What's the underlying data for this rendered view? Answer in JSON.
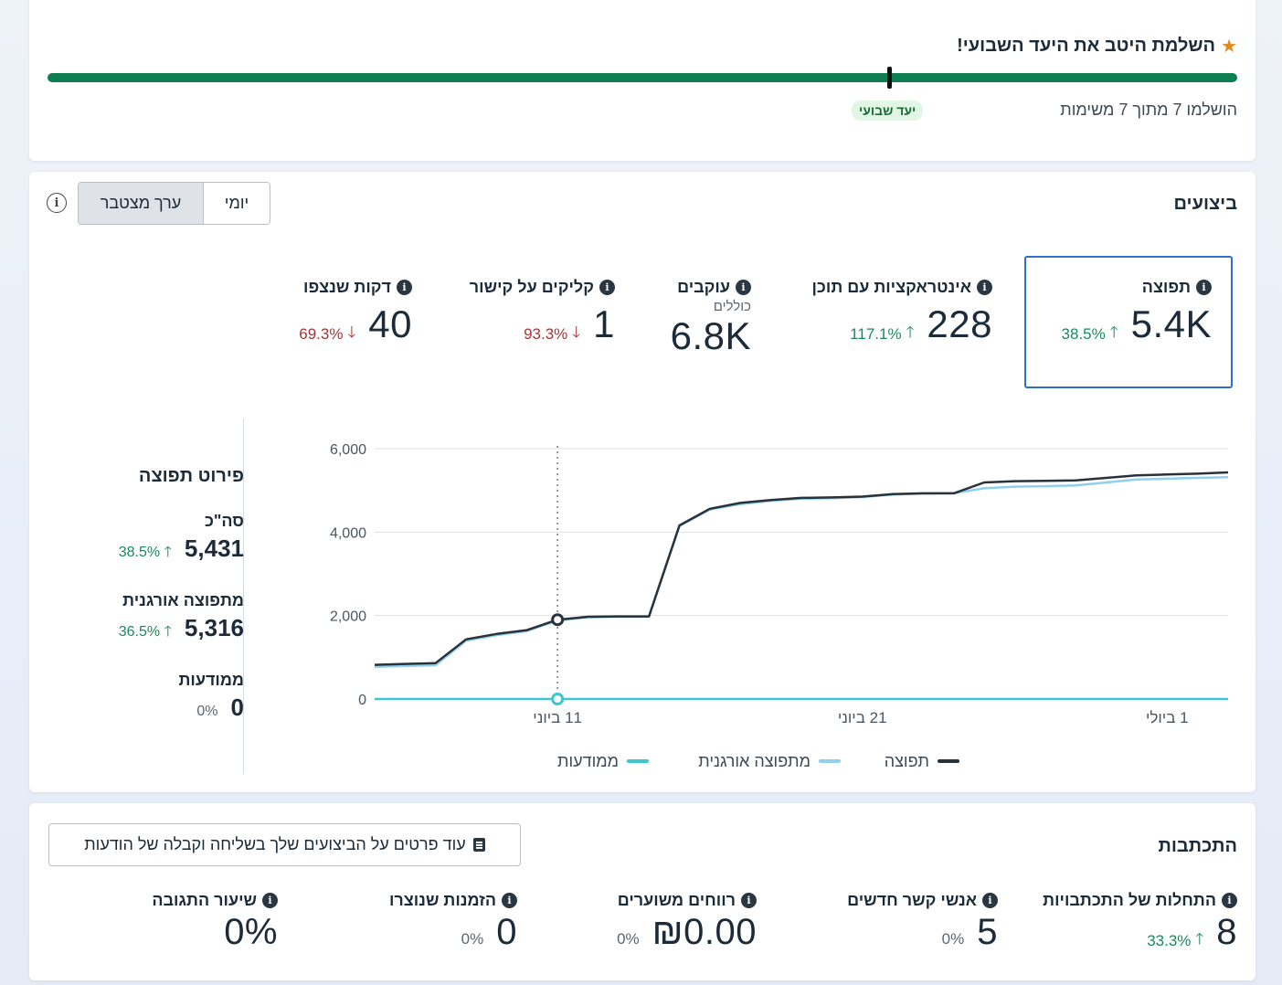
{
  "goal": {
    "title": "השלמת היטב את היעד השבועי!",
    "status": "הושלמו 7 מתוך 7 משימות",
    "badge": "יעד שבועי",
    "progress": 1.0
  },
  "performance": {
    "title": "ביצועים",
    "toggle": {
      "daily": "יומי",
      "cumulative": "ערך מצטבר",
      "selected": "cumulative"
    },
    "kpis": [
      {
        "label": "תפוצה",
        "value": "5.4K",
        "change": "38.5%",
        "direction": "up",
        "selected": true
      },
      {
        "label": "אינטראקציות עם תוכן",
        "value": "228",
        "change": "117.1%",
        "direction": "up"
      },
      {
        "label": "עוקבים",
        "sublabel": "כוללים",
        "value": "6.8K"
      },
      {
        "label": "קליקים על קישור",
        "value": "1",
        "change": "93.3%",
        "direction": "down"
      },
      {
        "label": "דקות שנצפו",
        "value": "40",
        "change": "69.3%",
        "direction": "down"
      }
    ],
    "breakdown": {
      "title": "פירוט תפוצה",
      "items": [
        {
          "label": "סה\"כ",
          "value": "5,431",
          "change": "38.5%",
          "direction": "up"
        },
        {
          "label": "מתפוצה אורגנית",
          "value": "5,316",
          "change": "36.5%",
          "direction": "up"
        },
        {
          "label": "ממודעות",
          "value": "0",
          "change": "0%",
          "direction": "none"
        }
      ]
    }
  },
  "chart_data": {
    "type": "line",
    "ylim": [
      0,
      6000
    ],
    "yticks": [
      "0",
      "2,000",
      "4,000",
      "6,000"
    ],
    "x_range": [
      0,
      28
    ],
    "xticks": [
      {
        "label": "11 ביוני",
        "x": 6
      },
      {
        "label": "21 ביוני",
        "x": 16
      },
      {
        "label": "1 ביולי",
        "x": 26
      }
    ],
    "hover_x": 6,
    "series": [
      {
        "name": "תפוצה",
        "color": "#2a3138",
        "x": [
          0,
          1,
          2,
          3,
          4,
          5,
          6,
          7,
          8,
          9,
          10,
          11,
          12,
          13,
          14,
          15,
          16,
          17,
          18,
          19,
          20,
          21,
          22,
          23,
          24,
          25,
          26,
          27,
          28
        ],
        "y": [
          820,
          840,
          860,
          1430,
          1560,
          1650,
          1900,
          1970,
          1980,
          1980,
          4160,
          4560,
          4700,
          4770,
          4820,
          4830,
          4850,
          4910,
          4930,
          4930,
          5190,
          5220,
          5230,
          5240,
          5300,
          5360,
          5380,
          5400,
          5431
        ]
      },
      {
        "name": "מתפוצה אורגנית",
        "color": "#8fd0f0",
        "x": [
          0,
          1,
          2,
          3,
          4,
          5,
          6,
          7,
          8,
          9,
          10,
          11,
          12,
          13,
          14,
          15,
          16,
          17,
          18,
          19,
          20,
          21,
          22,
          23,
          24,
          25,
          26,
          27,
          28
        ],
        "y": [
          770,
          790,
          810,
          1400,
          1530,
          1630,
          1880,
          1960,
          1970,
          1970,
          4150,
          4540,
          4670,
          4750,
          4800,
          4810,
          4840,
          4900,
          4920,
          4930,
          5050,
          5090,
          5100,
          5120,
          5190,
          5260,
          5280,
          5300,
          5316
        ]
      },
      {
        "name": "ממודעות",
        "color": "#3cc6d0",
        "x": [
          0,
          28
        ],
        "y": [
          0,
          0
        ]
      }
    ]
  },
  "messaging": {
    "title": "התכתבות",
    "more_button": "עוד פרטים על הביצועים שלך בשליחה וקבלה של הודעות",
    "kpis": [
      {
        "label": "התחלות של התכתבויות",
        "value": "8",
        "change": "33.3%",
        "direction": "up"
      },
      {
        "label": "אנשי קשר חדשים",
        "value": "5",
        "change": "0%",
        "direction": "none"
      },
      {
        "label": "רווחים משוערים",
        "value": "₪0.00",
        "change": "0%",
        "direction": "none"
      },
      {
        "label": "הזמנות שנוצרו",
        "value": "0",
        "change": "0%",
        "direction": "none"
      },
      {
        "label": "שיעור התגובה",
        "value": "0%"
      }
    ]
  }
}
